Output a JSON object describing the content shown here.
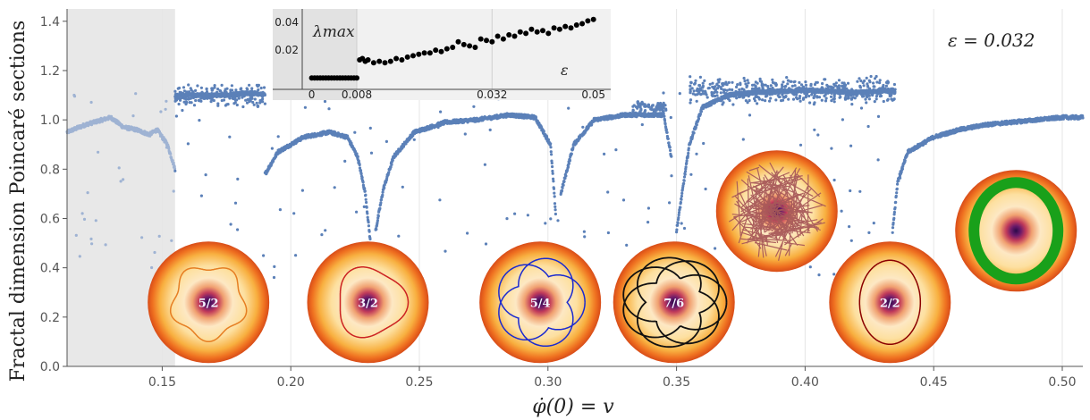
{
  "chart_data": {
    "type": "scatter",
    "xlabel": "φ̇(0) = v",
    "ylabel": "Fractal dimension Poincaré sections",
    "annotation": "ε = 0.032",
    "xlim": [
      0.113,
      0.508
    ],
    "ylim": [
      0,
      1.45
    ],
    "x_ticks": [
      "0.15",
      "0.20",
      "0.25",
      "0.30",
      "0.35",
      "0.40",
      "0.45",
      "0.50"
    ],
    "y_ticks": [
      "0.0",
      "0.2",
      "0.4",
      "0.6",
      "0.8",
      "1.0",
      "1.2",
      "1.4"
    ],
    "shaded_region": [
      0.113,
      0.155
    ],
    "marker_color": "#5b80b8",
    "shaded_marker_color": "#9fb3d3",
    "curve_segments": [
      {
        "x": [
          0.113,
          0.12,
          0.13,
          0.135,
          0.14,
          0.145,
          0.148,
          0.152,
          0.155
        ],
        "y": [
          0.95,
          0.98,
          1.01,
          0.97,
          0.96,
          0.94,
          0.96,
          0.9,
          0.8
        ]
      },
      {
        "x": [
          0.155,
          0.165,
          0.175,
          0.185,
          0.19
        ],
        "y": [
          1.1,
          1.1,
          1.1,
          1.11,
          1.1
        ]
      },
      {
        "x": [
          0.19,
          0.195,
          0.205,
          0.215,
          0.222,
          0.226,
          0.229,
          0.231
        ],
        "y": [
          0.78,
          0.87,
          0.93,
          0.95,
          0.93,
          0.85,
          0.7,
          0.5
        ]
      },
      {
        "x": [
          0.233,
          0.236,
          0.24,
          0.248,
          0.26,
          0.272
        ],
        "y": [
          0.55,
          0.72,
          0.85,
          0.95,
          0.99,
          1.0
        ]
      },
      {
        "x": [
          0.272,
          0.285,
          0.295,
          0.301,
          0.303
        ],
        "y": [
          1.0,
          1.02,
          1.01,
          0.9,
          0.62
        ]
      },
      {
        "x": [
          0.305,
          0.31,
          0.318,
          0.33,
          0.345,
          0.348
        ],
        "y": [
          0.7,
          0.9,
          1.0,
          1.02,
          1.02,
          0.85
        ]
      },
      {
        "x": [
          0.35,
          0.355,
          0.36,
          0.37,
          0.38,
          0.4,
          0.42,
          0.435
        ],
        "y": [
          0.55,
          0.9,
          1.05,
          1.1,
          1.11,
          1.12,
          1.11,
          1.12
        ]
      },
      {
        "x": [
          0.434,
          0.436,
          0.44,
          0.45,
          0.46,
          0.47,
          0.48,
          0.49,
          0.5,
          0.508
        ],
        "y": [
          0.55,
          0.75,
          0.87,
          0.93,
          0.96,
          0.98,
          0.99,
          1.0,
          1.01,
          1.01
        ]
      }
    ],
    "scatter_bands": [
      {
        "x": [
          0.155,
          0.19
        ],
        "y_center": 1.1,
        "spread": 0.05
      },
      {
        "x": [
          0.355,
          0.435
        ],
        "y_center": 1.12,
        "spread": 0.06
      },
      {
        "x": [
          0.333,
          0.346
        ],
        "y_center": 1.05,
        "spread": 0.03
      }
    ],
    "inset": {
      "type": "scatter",
      "ylabel": "λmax",
      "xlabel": "ε",
      "xlim": [
        -0.002,
        0.051
      ],
      "ylim": [
        -0.003,
        0.047
      ],
      "x_ticks": [
        "0",
        "0.008",
        "0.032",
        "0.05"
      ],
      "y_ticks": [
        "0.02",
        "0.04"
      ],
      "marker_color": "#000000",
      "points": [
        [
          0.0,
          0.0
        ],
        [
          0.0005,
          0.0
        ],
        [
          0.001,
          0.0
        ],
        [
          0.0015,
          0.0
        ],
        [
          0.002,
          0.0
        ],
        [
          0.0025,
          0.0
        ],
        [
          0.003,
          0.0
        ],
        [
          0.0035,
          0.0
        ],
        [
          0.004,
          0.0
        ],
        [
          0.0045,
          0.0
        ],
        [
          0.005,
          0.0
        ],
        [
          0.0055,
          0.0
        ],
        [
          0.006,
          0.0
        ],
        [
          0.0065,
          0.0
        ],
        [
          0.007,
          0.0
        ],
        [
          0.0075,
          0.0
        ],
        [
          0.008,
          0.0
        ],
        [
          0.0085,
          0.013
        ],
        [
          0.009,
          0.014
        ],
        [
          0.0095,
          0.012
        ],
        [
          0.01,
          0.013
        ],
        [
          0.011,
          0.011
        ],
        [
          0.012,
          0.012
        ],
        [
          0.013,
          0.011
        ],
        [
          0.014,
          0.012
        ],
        [
          0.015,
          0.014
        ],
        [
          0.016,
          0.013
        ],
        [
          0.017,
          0.015
        ],
        [
          0.018,
          0.016
        ],
        [
          0.019,
          0.017
        ],
        [
          0.02,
          0.018
        ],
        [
          0.021,
          0.018
        ],
        [
          0.022,
          0.02
        ],
        [
          0.023,
          0.019
        ],
        [
          0.024,
          0.021
        ],
        [
          0.025,
          0.022
        ],
        [
          0.026,
          0.026
        ],
        [
          0.027,
          0.024
        ],
        [
          0.028,
          0.023
        ],
        [
          0.029,
          0.022
        ],
        [
          0.03,
          0.028
        ],
        [
          0.031,
          0.027
        ],
        [
          0.032,
          0.026
        ],
        [
          0.033,
          0.03
        ],
        [
          0.034,
          0.028
        ],
        [
          0.035,
          0.031
        ],
        [
          0.036,
          0.03
        ],
        [
          0.037,
          0.033
        ],
        [
          0.038,
          0.032
        ],
        [
          0.039,
          0.035
        ],
        [
          0.04,
          0.033
        ],
        [
          0.041,
          0.034
        ],
        [
          0.042,
          0.032
        ],
        [
          0.043,
          0.036
        ],
        [
          0.044,
          0.035
        ],
        [
          0.045,
          0.037
        ],
        [
          0.046,
          0.036
        ],
        [
          0.047,
          0.038
        ],
        [
          0.048,
          0.039
        ],
        [
          0.049,
          0.041
        ],
        [
          0.05,
          0.042
        ]
      ]
    },
    "disks": [
      {
        "label": "5/2",
        "x": 0.168,
        "y": 0.26,
        "orbit": "rosette5",
        "color": "#e67e22"
      },
      {
        "label": "3/2",
        "x": 0.23,
        "y": 0.26,
        "orbit": "tri",
        "color": "#cc2222"
      },
      {
        "label": "5/4",
        "x": 0.297,
        "y": 0.26,
        "orbit": "star5",
        "color": "#1a2ad0"
      },
      {
        "label": "7/6",
        "x": 0.349,
        "y": 0.26,
        "orbit": "star7",
        "color": "#111111"
      },
      {
        "label": "",
        "x": 0.389,
        "y": 0.63,
        "orbit": "chaos",
        "color": "#a85858"
      },
      {
        "label": "2/2",
        "x": 0.433,
        "y": 0.26,
        "orbit": "ellipse",
        "color": "#8b0000"
      },
      {
        "label": "",
        "x": 0.482,
        "y": 0.55,
        "orbit": "ring",
        "color": "#19a01a"
      }
    ]
  }
}
